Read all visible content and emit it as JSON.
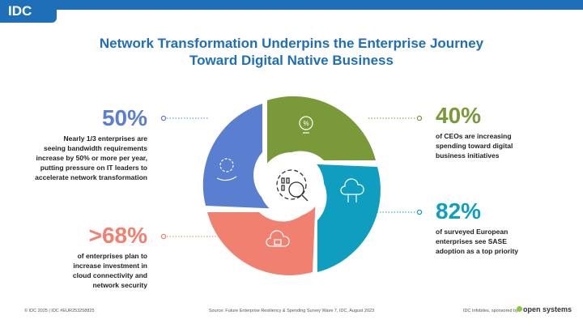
{
  "header": {
    "logo": "IDC"
  },
  "title": [
    "Network Transformation Underpins the Enterprise Journey",
    "Toward Digital Native Business"
  ],
  "icon_text": "%",
  "stats": [
    {
      "value": "50%",
      "description": [
        "Nearly 1/3 enterprises are",
        "seeing bandwidth requirements",
        "increase by 50% or more per year,",
        "putting pressure on IT leaders to",
        "accelerate network transformation"
      ]
    },
    {
      "value": "40%",
      "description": [
        "of CEOs are increasing",
        "spending toward digital",
        "business initiatives"
      ]
    },
    {
      "value": "82%",
      "description": [
        "of surveyed European",
        "enterprises see SASE",
        "adoption as a top priority"
      ]
    },
    {
      "value": ">68%",
      "description": [
        "of enterprises plan to",
        "increase investment in",
        "cloud connectivity and",
        "network security"
      ]
    }
  ],
  "footer": {
    "left": "© IDC 2025 | IDC #EUR253258825",
    "source": "Source: Future Enterprise Resiliency & Spending Survey Wave 7, IDC, August 2023",
    "sponsor": "IDC Infobites, sponsored by",
    "sponsor_logo": "open systems"
  }
}
